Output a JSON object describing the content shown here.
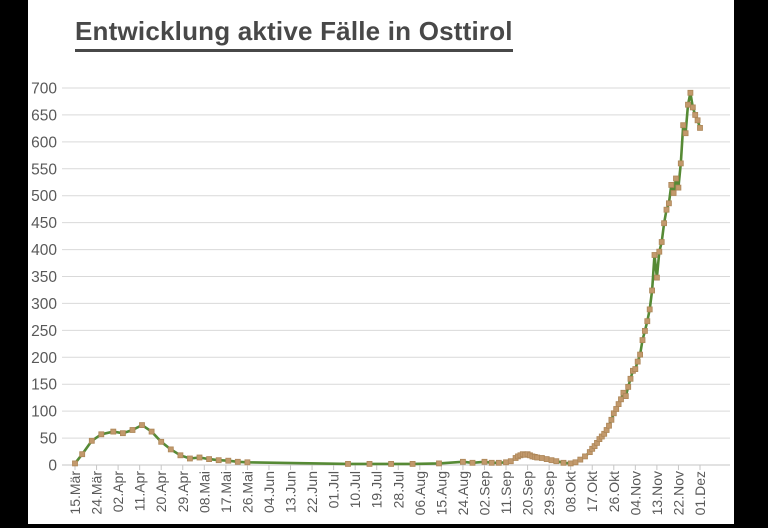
{
  "title": "Entwicklung aktive Fälle in Osttirol",
  "colors": {
    "background": "#000000",
    "paper": "#ffffff",
    "line": "#568a35",
    "marker_fill": "#c2996c",
    "marker_stroke": "#ad8759",
    "gridline": "#d9d9d9",
    "axis_line": "#c6c6c6",
    "tick_label": "#595959",
    "title_text": "#484848"
  },
  "chart_data": {
    "type": "line",
    "title": "Entwicklung aktive Fälle in Osttirol",
    "xlabel": "",
    "ylabel": "",
    "ylim": [
      0,
      700
    ],
    "y_tick_step": 50,
    "y_ticks": [
      0,
      50,
      100,
      150,
      200,
      250,
      300,
      350,
      400,
      450,
      500,
      550,
      600,
      650,
      700
    ],
    "x_tick_labels": [
      "15.Mär",
      "24.Mär",
      "02.Apr",
      "11.Apr",
      "20.Apr",
      "29.Apr",
      "08.Mai",
      "17.Mai",
      "26.Mai",
      "04.Jun",
      "13.Jun",
      "22.Jun",
      "01.Jul",
      "10.Jul",
      "19.Jul",
      "28.Jul",
      "06.Aug",
      "15.Aug",
      "24.Aug",
      "02.Sep",
      "11.Sep",
      "20.Sep",
      "29.Sep",
      "08.Okt",
      "17.Okt",
      "26.Okt",
      "04.Nov",
      "13.Nov",
      "22.Nov",
      "01.Dez"
    ],
    "grid": "horizontal",
    "legend": "none",
    "marker": "square",
    "series": [
      {
        "name": "aktive Fälle",
        "points": [
          [
            "15.Mär",
            3
          ],
          [
            "18.Mär",
            20
          ],
          [
            "22.Mär",
            45
          ],
          [
            "26.Mär",
            57
          ],
          [
            "31.Mär",
            62
          ],
          [
            "04.Apr",
            59
          ],
          [
            "08.Apr",
            65
          ],
          [
            "12.Apr",
            74
          ],
          [
            "16.Apr",
            62
          ],
          [
            "20.Apr",
            43
          ],
          [
            "24.Apr",
            29
          ],
          [
            "28.Apr",
            18
          ],
          [
            "02.Mai",
            12
          ],
          [
            "06.Mai",
            14
          ],
          [
            "10.Mai",
            11
          ],
          [
            "14.Mai",
            9
          ],
          [
            "18.Mai",
            8
          ],
          [
            "22.Mai",
            6
          ],
          [
            "26.Mai",
            5
          ],
          [
            "07.Jul",
            2
          ],
          [
            "16.Jul",
            2
          ],
          [
            "25.Jul",
            2
          ],
          [
            "03.Aug",
            2
          ],
          [
            "14.Aug",
            3
          ],
          [
            "24.Aug",
            6
          ],
          [
            "28.Aug",
            4
          ],
          [
            "02.Sep",
            6
          ],
          [
            "05.Sep",
            4
          ],
          [
            "08.Sep",
            4
          ],
          [
            "11.Sep",
            5
          ],
          [
            "13.Sep",
            7
          ],
          [
            "15.Sep",
            13
          ],
          [
            "16.Sep",
            16
          ],
          [
            "17.Sep",
            18
          ],
          [
            "18.Sep",
            20
          ],
          [
            "19.Sep",
            19
          ],
          [
            "20.Sep",
            20
          ],
          [
            "21.Sep",
            18
          ],
          [
            "22.Sep",
            16
          ],
          [
            "23.Sep",
            15
          ],
          [
            "24.Sep",
            14
          ],
          [
            "26.Sep",
            13
          ],
          [
            "28.Sep",
            11
          ],
          [
            "30.Sep",
            9
          ],
          [
            "02.Okt",
            7
          ],
          [
            "05.Okt",
            4
          ],
          [
            "08.Okt",
            3
          ],
          [
            "10.Okt",
            5
          ],
          [
            "12.Okt",
            10
          ],
          [
            "14.Okt",
            16
          ],
          [
            "16.Okt",
            24
          ],
          [
            "17.Okt",
            30
          ],
          [
            "18.Okt",
            35
          ],
          [
            "19.Okt",
            41
          ],
          [
            "20.Okt",
            48
          ],
          [
            "21.Okt",
            53
          ],
          [
            "22.Okt",
            58
          ],
          [
            "23.Okt",
            65
          ],
          [
            "24.Okt",
            73
          ],
          [
            "25.Okt",
            84
          ],
          [
            "26.Okt",
            96
          ],
          [
            "27.Okt",
            104
          ],
          [
            "28.Okt",
            113
          ],
          [
            "29.Okt",
            122
          ],
          [
            "30.Okt",
            134
          ],
          [
            "31.Okt",
            128
          ],
          [
            "01.Nov",
            145
          ],
          [
            "02.Nov",
            160
          ],
          [
            "03.Nov",
            175
          ],
          [
            "04.Nov",
            178
          ],
          [
            "05.Nov",
            192
          ],
          [
            "06.Nov",
            205
          ],
          [
            "07.Nov",
            232
          ],
          [
            "08.Nov",
            249
          ],
          [
            "09.Nov",
            267
          ],
          [
            "10.Nov",
            289
          ],
          [
            "11.Nov",
            324
          ],
          [
            "12.Nov",
            390
          ],
          [
            "13.Nov",
            348
          ],
          [
            "14.Nov",
            396
          ],
          [
            "15.Nov",
            414
          ],
          [
            "16.Nov",
            449
          ],
          [
            "17.Nov",
            474
          ],
          [
            "18.Nov",
            486
          ],
          [
            "19.Nov",
            520
          ],
          [
            "20.Nov",
            505
          ],
          [
            "21.Nov",
            532
          ],
          [
            "22.Nov",
            515
          ],
          [
            "23.Nov",
            560
          ],
          [
            "24.Nov",
            631
          ],
          [
            "25.Nov",
            616
          ],
          [
            "26.Nov",
            669
          ],
          [
            "27.Nov",
            691
          ],
          [
            "28.Nov",
            664
          ],
          [
            "29.Nov",
            650
          ],
          [
            "30.Nov",
            640
          ],
          [
            "01.Dez",
            626
          ]
        ]
      }
    ]
  }
}
